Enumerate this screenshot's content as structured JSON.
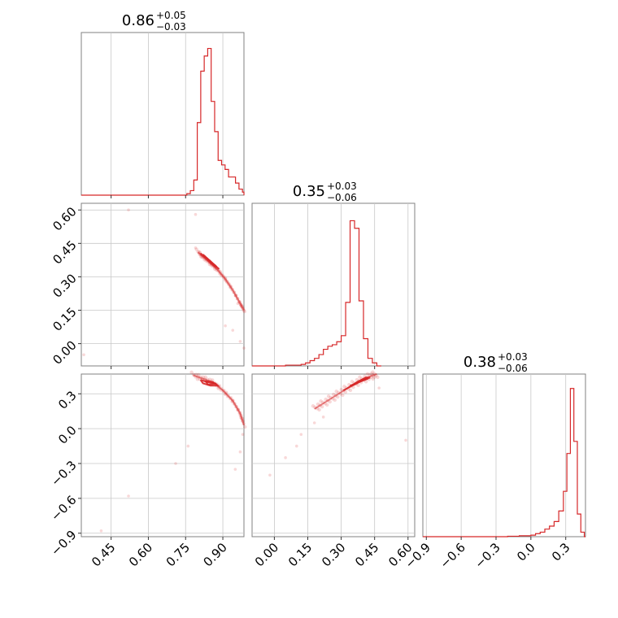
{
  "chart_data": {
    "type": "corner",
    "color": "#d62728",
    "grid": true,
    "parameters": [
      {
        "title": {
          "median": "0.86",
          "plus": "+0.05",
          "minus": "−0.03"
        },
        "range": [
          0.33,
          0.985
        ],
        "ticks": [
          0.45,
          0.6,
          0.75,
          0.9
        ],
        "tick_labels": [
          "0.45",
          "0.60",
          "0.75",
          "0.90"
        ]
      },
      {
        "title": {
          "median": "0.35",
          "plus": "+0.03",
          "minus": "−0.06"
        },
        "range": [
          -0.1,
          0.63
        ],
        "ticks": [
          0.0,
          0.15,
          0.3,
          0.45,
          0.6
        ],
        "tick_labels": [
          "0.00",
          "0.15",
          "0.30",
          "0.45",
          "0.60"
        ]
      },
      {
        "title": {
          "median": "0.38",
          "plus": "+0.03",
          "minus": "−0.06"
        },
        "range": [
          -0.93,
          0.47
        ],
        "ticks": [
          -0.9,
          -0.6,
          -0.3,
          0.0,
          0.3
        ],
        "tick_labels": [
          "−0.9",
          "−0.6",
          "−0.3",
          "0.0",
          "0.3"
        ]
      }
    ],
    "histograms": [
      {
        "parameter": 0,
        "bin_edges": [
          0.755,
          0.769,
          0.783,
          0.797,
          0.811,
          0.825,
          0.839,
          0.853,
          0.867,
          0.881,
          0.895,
          0.909,
          0.923,
          0.937,
          0.951,
          0.965,
          0.979,
          0.985
        ],
        "counts": [
          0.01,
          0.03,
          0.1,
          0.48,
          0.82,
          0.92,
          0.97,
          0.62,
          0.42,
          0.23,
          0.2,
          0.17,
          0.12,
          0.12,
          0.08,
          0.04,
          0.02
        ]
      },
      {
        "parameter": 1,
        "bin_edges": [
          -0.1,
          0.05,
          0.12,
          0.14,
          0.16,
          0.18,
          0.2,
          0.22,
          0.24,
          0.26,
          0.28,
          0.3,
          0.32,
          0.34,
          0.36,
          0.38,
          0.4,
          0.42,
          0.44,
          0.46,
          0.48
        ],
        "counts": [
          0.0,
          0.005,
          0.01,
          0.02,
          0.035,
          0.05,
          0.075,
          0.11,
          0.13,
          0.14,
          0.16,
          0.2,
          0.42,
          0.96,
          0.91,
          0.43,
          0.18,
          0.05,
          0.02,
          0.0
        ]
      },
      {
        "parameter": 2,
        "bin_edges": [
          -0.93,
          -0.2,
          -0.1,
          0.0,
          0.04,
          0.08,
          0.12,
          0.16,
          0.2,
          0.24,
          0.28,
          0.31,
          0.34,
          0.37,
          0.4,
          0.43,
          0.46,
          0.47
        ],
        "counts": [
          0.0,
          0.003,
          0.006,
          0.01,
          0.02,
          0.03,
          0.05,
          0.07,
          0.1,
          0.17,
          0.3,
          0.55,
          0.98,
          0.63,
          0.15,
          0.03,
          0.0
        ]
      }
    ],
    "scatter": [
      {
        "x_param": 0,
        "y_param": 1,
        "points": [
          [
            0.52,
            0.6
          ],
          [
            0.79,
            0.58
          ],
          [
            0.94,
            0.06
          ],
          [
            0.97,
            0.01
          ],
          [
            0.985,
            -0.02
          ],
          [
            0.34,
            -0.05
          ],
          [
            0.79,
            0.43
          ],
          [
            0.96,
            0.18
          ],
          [
            0.99,
            0.12
          ],
          [
            0.91,
            0.08
          ]
        ],
        "contours": [
          [
            [
              0.8,
              0.41
            ],
            [
              0.82,
              0.39
            ],
            [
              0.85,
              0.36
            ],
            [
              0.88,
              0.33
            ],
            [
              0.91,
              0.29
            ],
            [
              0.94,
              0.24
            ],
            [
              0.97,
              0.18
            ],
            [
              0.985,
              0.15
            ]
          ],
          [
            [
              0.81,
              0.405
            ],
            [
              0.835,
              0.385
            ],
            [
              0.86,
              0.36
            ],
            [
              0.885,
              0.335
            ],
            [
              0.87,
              0.345
            ],
            [
              0.845,
              0.37
            ],
            [
              0.82,
              0.395
            ],
            [
              0.81,
              0.405
            ]
          ],
          [
            [
              0.82,
              0.4
            ],
            [
              0.85,
              0.37
            ],
            [
              0.875,
              0.345
            ],
            [
              0.865,
              0.35
            ],
            [
              0.84,
              0.375
            ],
            [
              0.82,
              0.4
            ]
          ]
        ]
      },
      {
        "x_param": 0,
        "y_param": 2,
        "points": [
          [
            0.76,
            -0.15
          ],
          [
            0.95,
            -0.35
          ],
          [
            0.97,
            -0.2
          ],
          [
            0.71,
            -0.3
          ],
          [
            0.52,
            -0.58
          ],
          [
            0.41,
            -0.88
          ],
          [
            0.98,
            -0.05
          ],
          [
            0.99,
            -0.3
          ]
        ],
        "contours": [
          [
            [
              0.78,
              0.46
            ],
            [
              0.82,
              0.43
            ],
            [
              0.86,
              0.4
            ],
            [
              0.9,
              0.33
            ],
            [
              0.94,
              0.24
            ],
            [
              0.97,
              0.13
            ],
            [
              0.985,
              0.03
            ]
          ],
          [
            [
              0.81,
              0.42
            ],
            [
              0.84,
              0.4
            ],
            [
              0.87,
              0.39
            ],
            [
              0.88,
              0.37
            ],
            [
              0.85,
              0.37
            ],
            [
              0.82,
              0.39
            ],
            [
              0.81,
              0.42
            ]
          ],
          [
            [
              0.83,
              0.41
            ],
            [
              0.86,
              0.4
            ],
            [
              0.87,
              0.385
            ],
            [
              0.84,
              0.38
            ],
            [
              0.83,
              0.41
            ]
          ]
        ]
      },
      {
        "x_param": 1,
        "y_param": 2,
        "points": [
          [
            0.1,
            -0.15
          ],
          [
            -0.02,
            -0.4
          ],
          [
            0.05,
            -0.25
          ],
          [
            0.18,
            0.05
          ],
          [
            0.59,
            -0.1
          ],
          [
            0.47,
            0.35
          ],
          [
            0.12,
            -0.05
          ],
          [
            0.22,
            0.1
          ]
        ],
        "contours": [
          [
            [
              0.18,
              0.17
            ],
            [
              0.23,
              0.23
            ],
            [
              0.28,
              0.29
            ],
            [
              0.33,
              0.35
            ],
            [
              0.38,
              0.41
            ],
            [
              0.43,
              0.45
            ],
            [
              0.46,
              0.47
            ]
          ],
          [
            [
              0.31,
              0.33
            ],
            [
              0.35,
              0.37
            ],
            [
              0.39,
              0.41
            ],
            [
              0.43,
              0.44
            ],
            [
              0.41,
              0.44
            ],
            [
              0.37,
              0.4
            ],
            [
              0.33,
              0.35
            ],
            [
              0.31,
              0.33
            ]
          ],
          [
            [
              0.34,
              0.37
            ],
            [
              0.38,
              0.4
            ],
            [
              0.42,
              0.43
            ],
            [
              0.4,
              0.42
            ],
            [
              0.36,
              0.38
            ],
            [
              0.34,
              0.37
            ]
          ]
        ]
      }
    ]
  }
}
